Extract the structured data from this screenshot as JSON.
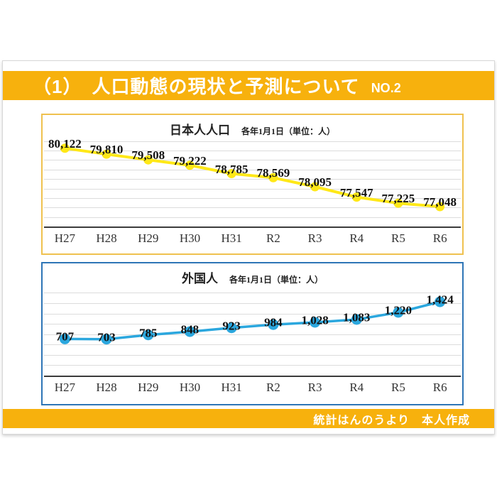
{
  "header": {
    "title": "（1）　人口動態の現状と予測について",
    "number": "NO.2"
  },
  "footer": {
    "credit": "統計はんのうより　本人作成"
  },
  "chart_data": [
    {
      "type": "line",
      "title": "日本人人口",
      "subtitle": "各年1月1日（単位：人）",
      "categories": [
        "H27",
        "H28",
        "H29",
        "H30",
        "H31",
        "R2",
        "R3",
        "R4",
        "R5",
        "R6"
      ],
      "values": [
        80122,
        79810,
        79508,
        79222,
        78785,
        78569,
        78095,
        77547,
        77225,
        77048
      ],
      "labels": [
        "80,122",
        "79,810",
        "79,508",
        "79,222",
        "78,785",
        "78,569",
        "78,095",
        "77,547",
        "77,225",
        "77,048"
      ],
      "ylim": [
        76000,
        80600
      ],
      "grid": {
        "start": 76500,
        "end": 80500,
        "step": 500,
        "visible": true
      },
      "legend_position": "none",
      "xlabel": "",
      "ylabel": "",
      "line_color": "#FFE817",
      "marker_color": "#FFE817",
      "marker_radius": 6.5,
      "line_width": 4,
      "label_dy_percent": -80
    },
    {
      "type": "line",
      "title": "外国人",
      "subtitle": "各年1月1日（単位：人）",
      "categories": [
        "H27",
        "H28",
        "H29",
        "H30",
        "H31",
        "R2",
        "R3",
        "R4",
        "R5",
        "R6"
      ],
      "values": [
        707,
        703,
        785,
        848,
        923,
        984,
        1028,
        1083,
        1220,
        1424
      ],
      "labels": [
        "707",
        "703",
        "785",
        "848",
        "923",
        "984",
        "1,028",
        "1,083",
        "1,220",
        "1,424"
      ],
      "ylim": [
        0,
        1700
      ],
      "grid": {
        "start": 200,
        "end": 1600,
        "step": 200,
        "visible": true
      },
      "legend_position": "none",
      "xlabel": "",
      "ylabel": "",
      "line_color": "#2BA7DE",
      "marker_color": "#2BA7DE",
      "marker_radius": 7.5,
      "line_width": 3.5,
      "label_dy_percent": -62
    }
  ]
}
